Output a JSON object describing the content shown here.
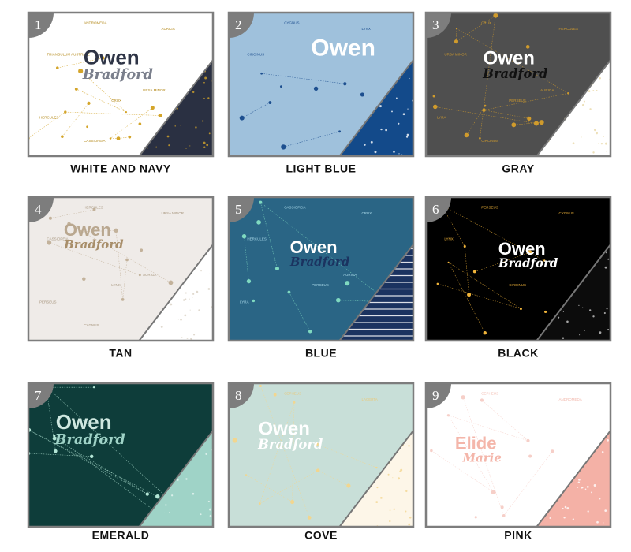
{
  "swatches": [
    {
      "number": "1",
      "label": "WHITE AND NAVY",
      "first_name": "Owen",
      "last_name": "Bradford",
      "constellations": [
        "ANDROMEDA",
        "AURIGA",
        "TRIANGULUM AUSTRALE",
        "CRUX",
        "HERCULES",
        "URSA MINOR",
        "CASSIOPEIA"
      ]
    },
    {
      "number": "2",
      "label": "LIGHT BLUE",
      "first_name": "Owen",
      "constellations": [
        "CYGNUS",
        "LYNX",
        "CIRCINUS"
      ]
    },
    {
      "number": "3",
      "label": "GRAY",
      "first_name": "Owen",
      "last_name": "Bradford",
      "constellations": [
        "CRUX",
        "HERCULES",
        "URSA MINOR",
        "PERSEUS",
        "LYRA",
        "AURIGA",
        "CIRCINUS"
      ]
    },
    {
      "number": "4",
      "label": "TAN",
      "first_name": "Owen",
      "last_name": "Bradford",
      "constellations": [
        "HERCULES",
        "URSA MINOR",
        "CASSIOPEIA",
        "LYNX",
        "PERSEUS",
        "AURIGA",
        "CYGNUS"
      ]
    },
    {
      "number": "5",
      "label": "BLUE",
      "first_name": "Owen",
      "last_name": "Bradford",
      "constellations": [
        "CASSIOPEIA",
        "CRUX",
        "HERCULES",
        "PERSEUS",
        "LYRA",
        "AURIGA"
      ]
    },
    {
      "number": "6",
      "label": "BLACK",
      "first_name": "Owen",
      "last_name": "Bradford",
      "constellations": [
        "PERSEUS",
        "CYGNUS",
        "LYNX",
        "CIRCINUS"
      ]
    },
    {
      "number": "7",
      "label": "EMERALD",
      "first_name": "Owen",
      "last_name": "Bradford",
      "constellations": []
    },
    {
      "number": "8",
      "label": "COVE",
      "first_name": "Owen",
      "last_name": "Bradford",
      "constellations": [
        "CEPHEUS",
        "LACERTA"
      ]
    },
    {
      "number": "9",
      "label": "PINK",
      "first_name": "Elide",
      "last_name": "Marie",
      "constellations": [
        "CEPHEUS",
        "ANDROMEDA"
      ]
    }
  ]
}
